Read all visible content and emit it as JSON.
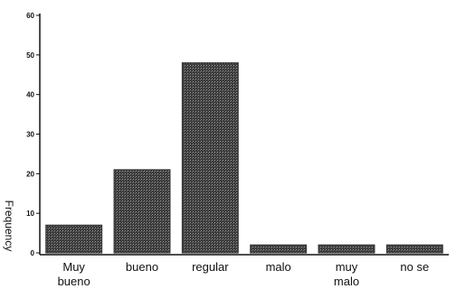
{
  "chart_data": {
    "type": "bar",
    "categories": [
      [
        "Muy",
        "bueno"
      ],
      [
        "bueno"
      ],
      [
        "regular"
      ],
      [
        "malo"
      ],
      [
        "muy",
        "malo"
      ],
      [
        "no se"
      ]
    ],
    "values": [
      7,
      21,
      48,
      2,
      2,
      2
    ],
    "ylabel": "Frequency",
    "ylim": [
      0,
      60
    ],
    "yticks": [
      0,
      10,
      20,
      30,
      40,
      50,
      60
    ],
    "grid": false,
    "bar_color": "#3a3a3a"
  }
}
